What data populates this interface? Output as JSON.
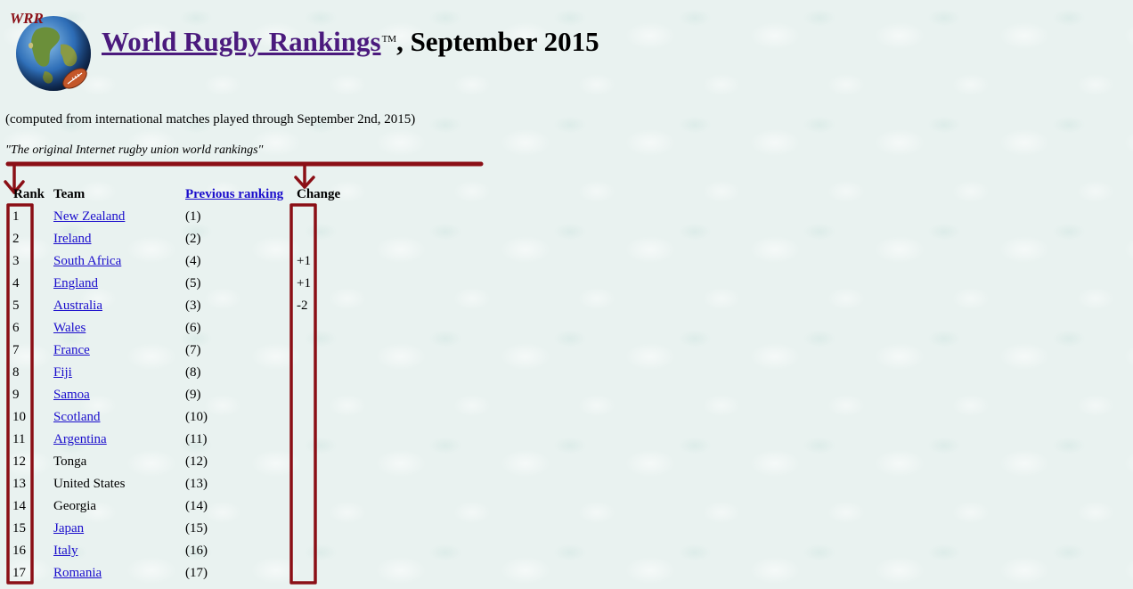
{
  "header": {
    "logo_text": "WRR",
    "title_link": "World Rugby Rankings",
    "trademark": "TM",
    "title_suffix": ", September 2015"
  },
  "computed_note": "(computed from international matches played through September 2nd, 2015)",
  "tagline": "\"The original Internet rugby union world rankings\"",
  "table": {
    "columns": {
      "rank": "Rank",
      "team": "Team",
      "previous": "Previous ranking",
      "change": "Change"
    },
    "rows": [
      {
        "rank": "1",
        "team": "New Zealand",
        "linked": true,
        "previous": "(1)",
        "change": ""
      },
      {
        "rank": "2",
        "team": "Ireland",
        "linked": true,
        "previous": "(2)",
        "change": ""
      },
      {
        "rank": "3",
        "team": "South Africa",
        "linked": true,
        "previous": "(4)",
        "change": "+1"
      },
      {
        "rank": "4",
        "team": "England",
        "linked": true,
        "previous": "(5)",
        "change": "+1"
      },
      {
        "rank": "5",
        "team": "Australia",
        "linked": true,
        "previous": "(3)",
        "change": "-2"
      },
      {
        "rank": "6",
        "team": "Wales",
        "linked": true,
        "previous": "(6)",
        "change": ""
      },
      {
        "rank": "7",
        "team": "France",
        "linked": true,
        "previous": "(7)",
        "change": ""
      },
      {
        "rank": "8",
        "team": "Fiji",
        "linked": true,
        "previous": "(8)",
        "change": ""
      },
      {
        "rank": "9",
        "team": "Samoa",
        "linked": true,
        "previous": "(9)",
        "change": ""
      },
      {
        "rank": "10",
        "team": "Scotland",
        "linked": true,
        "previous": "(10)",
        "change": ""
      },
      {
        "rank": "11",
        "team": "Argentina",
        "linked": true,
        "previous": "(11)",
        "change": ""
      },
      {
        "rank": "12",
        "team": "Tonga",
        "linked": false,
        "previous": "(12)",
        "change": ""
      },
      {
        "rank": "13",
        "team": "United States",
        "linked": false,
        "previous": "(13)",
        "change": ""
      },
      {
        "rank": "14",
        "team": "Georgia",
        "linked": false,
        "previous": "(14)",
        "change": ""
      },
      {
        "rank": "15",
        "team": "Japan",
        "linked": true,
        "previous": "(15)",
        "change": ""
      },
      {
        "rank": "16",
        "team": "Italy",
        "linked": true,
        "previous": "(16)",
        "change": ""
      },
      {
        "rank": "17",
        "team": "Romania",
        "linked": true,
        "previous": "(17)",
        "change": ""
      }
    ]
  },
  "colors": {
    "annotation": "#8b0f16",
    "link": "#1a0dcc",
    "title_link": "#4b1a7d",
    "background": "#e9f2f0"
  }
}
